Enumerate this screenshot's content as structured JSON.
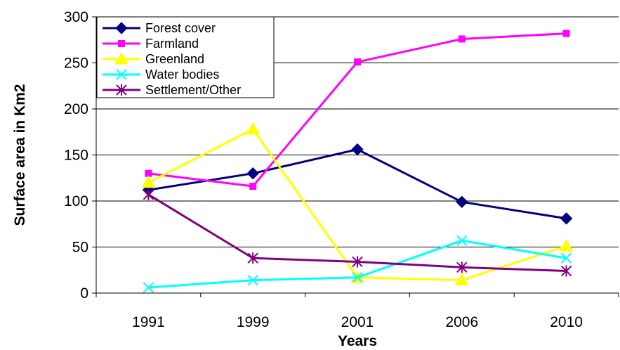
{
  "chart_data": {
    "type": "line",
    "title": "",
    "xlabel": "Years",
    "ylabel": "Surface area in Km2",
    "categories": [
      "1991",
      "1999",
      "2001",
      "2006",
      "2010"
    ],
    "ylim": [
      0,
      300
    ],
    "yticks": [
      0,
      50,
      100,
      150,
      200,
      250,
      300
    ],
    "grid": true,
    "legend_position": "top-left",
    "series": [
      {
        "name": "Forest cover",
        "values": [
          112,
          130,
          156,
          99,
          81
        ],
        "color": "#000080",
        "marker": "diamond"
      },
      {
        "name": "Farmland",
        "values": [
          130,
          116,
          251,
          276,
          282
        ],
        "color": "#FF00FF",
        "marker": "square"
      },
      {
        "name": "Greenland",
        "values": [
          120,
          178,
          17,
          14,
          51
        ],
        "color": "#FFFF00",
        "marker": "triangle"
      },
      {
        "name": "Water bodies",
        "values": [
          6,
          14,
          17,
          57,
          38
        ],
        "color": "#00FFFF",
        "marker": "x"
      },
      {
        "name": "Settlement/Other",
        "values": [
          107,
          38,
          34,
          28,
          24
        ],
        "color": "#800080",
        "marker": "asterisk"
      }
    ]
  }
}
